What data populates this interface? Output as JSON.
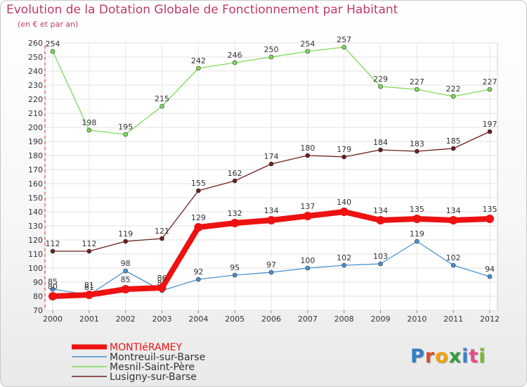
{
  "title": "Evolution de la Dotation Globale de Fonctionnement par Habitant",
  "subtitle": "(en € et par an)",
  "logo": {
    "letters": [
      "P",
      "r",
      "o",
      "x",
      "i",
      "t",
      "i"
    ],
    "colors": [
      "#2f7fc8",
      "#e24a2a",
      "#f0a30a",
      "#2e9e3e",
      "#3a7fd0",
      "#e64a8a",
      "#7ab830"
    ]
  },
  "chart_data": {
    "type": "line",
    "title": "Evolution de la Dotation Globale de Fonctionnement par Habitant",
    "subtitle": "(en € et par an)",
    "xlabel": "",
    "ylabel": "",
    "ylim": [
      70,
      260
    ],
    "yticks": [
      70,
      80,
      90,
      100,
      110,
      120,
      130,
      140,
      150,
      160,
      170,
      180,
      190,
      200,
      210,
      220,
      230,
      240,
      250,
      260
    ],
    "grid": true,
    "legend_position": "bottom-left",
    "x": [
      "2000",
      "2001",
      "2002",
      "2003",
      "2004",
      "2005",
      "2006",
      "2007",
      "2008",
      "2009",
      "2010",
      "2011",
      "2012"
    ],
    "series": [
      {
        "name": "Mesnil-Saint-Père",
        "color": "#7ed957",
        "values": [
          254,
          198,
          195,
          215,
          242,
          246,
          250,
          254,
          257,
          229,
          227,
          222,
          227
        ],
        "weight": "thin"
      },
      {
        "name": "Lusigny-sur-Barse",
        "color": "#6b1f1f",
        "values": [
          112,
          112,
          119,
          121,
          155,
          162,
          174,
          180,
          179,
          184,
          183,
          185,
          197
        ],
        "weight": "thin"
      },
      {
        "name": "Montreuil-sur-Barse",
        "color": "#4a90d0",
        "values": [
          85,
          81,
          98,
          84,
          92,
          95,
          97,
          100,
          102,
          103,
          119,
          102,
          94
        ],
        "weight": "thin"
      },
      {
        "name": "MONTIéRAMEY",
        "color": "#ee1111",
        "values": [
          80,
          81,
          85,
          86,
          129,
          132,
          134,
          137,
          140,
          134,
          135,
          134,
          135
        ],
        "weight": "thick"
      }
    ],
    "legend": [
      "MONTIéRAMEY",
      "Montreuil-sur-Barse",
      "Mesnil-Saint-Père",
      "Lusigny-sur-Barse"
    ]
  }
}
